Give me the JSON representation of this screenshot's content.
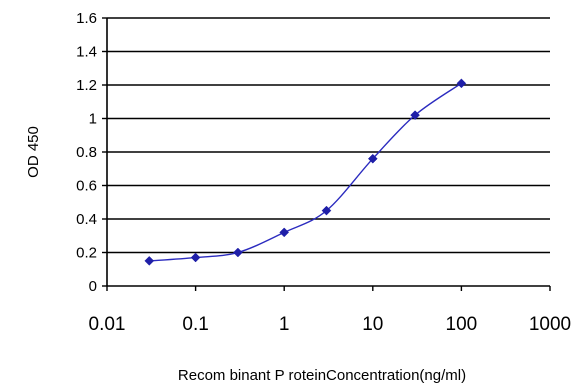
{
  "chart_data": {
    "type": "line",
    "xscale": "log",
    "xlim": [
      0.01,
      1000
    ],
    "ylim": [
      0,
      1.6
    ],
    "xticks": [
      "0.01",
      "0.1",
      "1",
      "10",
      "100",
      "1000"
    ],
    "xtick_values": [
      0.01,
      0.1,
      1,
      10,
      100,
      1000
    ],
    "yticks": [
      "0",
      "0.2",
      "0.4",
      "0.6",
      "0.8",
      "1",
      "1.2",
      "1.4",
      "1.6"
    ],
    "ytick_values": [
      0,
      0.2,
      0.4,
      0.6,
      0.8,
      1.0,
      1.2,
      1.4,
      1.6
    ],
    "xlabel": "Recom binant P roteinConcentration(ng/ml)",
    "ylabel": "OD 450",
    "grid": "horizontal",
    "series": [
      {
        "x": [
          0.03,
          0.1,
          0.3,
          1,
          3,
          10,
          30,
          100
        ],
        "y": [
          0.15,
          0.17,
          0.2,
          0.32,
          0.45,
          0.76,
          1.02,
          1.21
        ],
        "color": "#2b2bbf",
        "marker": "diamond"
      }
    ]
  }
}
